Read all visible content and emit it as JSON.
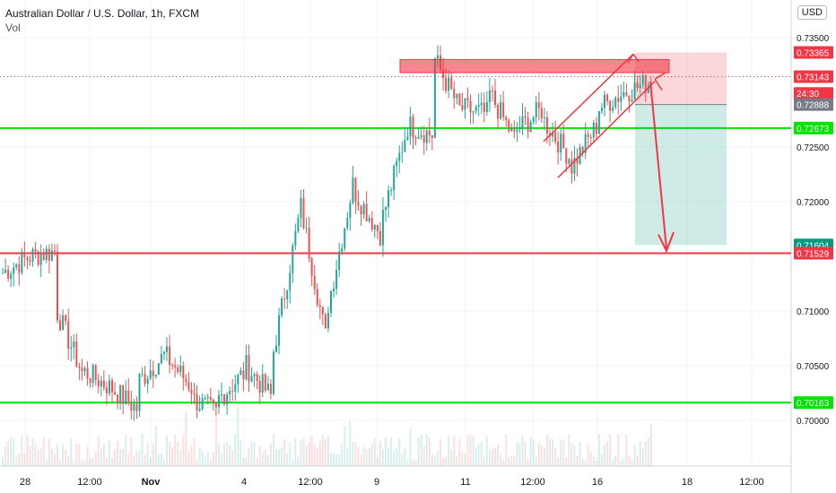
{
  "header": {
    "symbol_title": "Australian Dollar / U.S. Dollar, 1h, FXCM",
    "volume_label": "Vol",
    "currency_button": "USD"
  },
  "chart_data": {
    "type": "candlestick",
    "ylim": [
      0.6955,
      0.7365
    ],
    "y_ticks": [
      "0.70000",
      "0.70500",
      "0.71000",
      "0.72000",
      "0.72500",
      "0.73500"
    ],
    "x_ticks": [
      "28",
      "12:00",
      "Nov",
      "4",
      "12:00",
      "9",
      "11",
      "12:00",
      "16",
      "18",
      "12:00"
    ],
    "price_labels": [
      {
        "text": "0.73365",
        "value": 0.73365,
        "color": "#f23645"
      },
      {
        "text": "0.73143",
        "value": 0.73143,
        "color": "#ffffff"
      },
      {
        "text": "24:30",
        "value": 0.7299,
        "color": "#ffffff"
      },
      {
        "text": "0.72888",
        "value": 0.72888,
        "color": "#787b86"
      },
      {
        "text": "0.72673",
        "value": 0.72673,
        "color": "#00e600"
      },
      {
        "text": "0.71604",
        "value": 0.71604,
        "color": "#089981"
      },
      {
        "text": "0.71529",
        "value": 0.71529,
        "color": "#f23645"
      },
      {
        "text": "0.70163",
        "value": 0.70163,
        "color": "#00e600"
      }
    ],
    "horizontal_levels": [
      {
        "value": 0.72673,
        "color": "#00e600"
      },
      {
        "value": 0.71529,
        "color": "#f23645"
      },
      {
        "value": 0.70163,
        "color": "#00e600"
      }
    ],
    "current_price": 0.73143,
    "trade_setup": {
      "entry": 0.72888,
      "stop": 0.73365,
      "target": 0.71604
    },
    "resistance_zone": [
      0.7318,
      0.733
    ],
    "price_path": [
      [
        0.7135,
        0.715
      ],
      [
        0.715,
        0.7155
      ],
      [
        0.71,
        0.704
      ],
      [
        0.7045,
        0.703
      ],
      [
        0.703,
        0.701
      ],
      [
        0.7035,
        0.706
      ],
      [
        0.706,
        0.703
      ],
      [
        0.702,
        0.7005
      ],
      [
        0.702,
        0.7045
      ],
      [
        0.705,
        0.702
      ],
      [
        0.706,
        0.719
      ],
      [
        0.72,
        0.707
      ],
      [
        0.71,
        0.722
      ],
      [
        0.721,
        0.717
      ],
      [
        0.718,
        0.727
      ],
      [
        0.727,
        0.726
      ],
      [
        0.733,
        0.728
      ],
      [
        0.7285,
        0.728
      ],
      [
        0.73,
        0.7255
      ],
      [
        0.7265,
        0.7285
      ],
      [
        0.7275,
        0.724
      ],
      [
        0.723,
        0.727
      ],
      [
        0.7285,
        0.73
      ],
      [
        0.73,
        0.731
      ]
    ]
  }
}
